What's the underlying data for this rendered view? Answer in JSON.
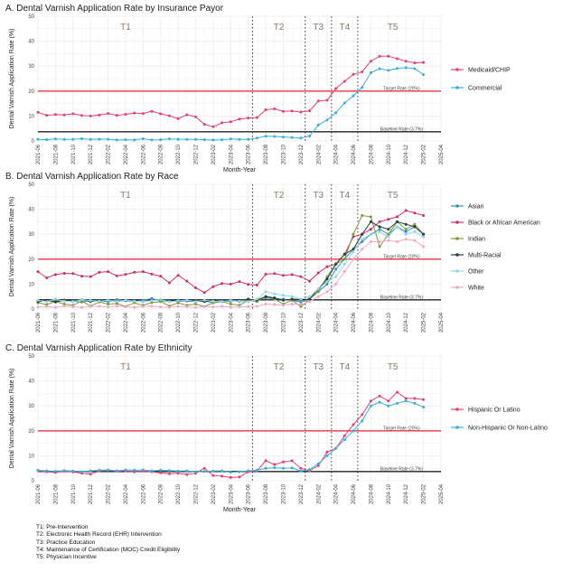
{
  "footnotes": [
    "T1: Pre-Intervention",
    "T2: Electronic Health Record (EHR) Intervention",
    "T3: Practice Education",
    "T4: Maintenance of Certification (MOC) Credit Eligibility",
    "T5: Physician Incentive"
  ],
  "chart_data": [
    {
      "type": "line",
      "title": "A. Dental Varnish Application Rate by Insurance Payor",
      "xlabel": "Month-Year",
      "ylabel": "Dental Varnish Application Rate (%)",
      "ylim": [
        0,
        50
      ],
      "yticks": [
        0,
        10,
        20,
        30,
        40,
        50
      ],
      "xticks": [
        "2021-06",
        "2021-08",
        "2021-10",
        "2021-12",
        "2022-02",
        "2022-04",
        "2022-06",
        "2022-08",
        "2022-10",
        "2022-12",
        "2023-02",
        "2023-04",
        "2023-06",
        "2023-08",
        "2023-10",
        "2023-12",
        "2024-02",
        "2024-04",
        "2024-06",
        "2024-08",
        "2024-10",
        "2024-12",
        "2025-02",
        "2025-04"
      ],
      "x": [
        "2021-06",
        "2021-07",
        "2021-08",
        "2021-09",
        "2021-10",
        "2021-11",
        "2021-12",
        "2022-01",
        "2022-02",
        "2022-03",
        "2022-04",
        "2022-05",
        "2022-06",
        "2022-07",
        "2022-08",
        "2022-09",
        "2022-10",
        "2022-11",
        "2022-12",
        "2023-01",
        "2023-02",
        "2023-03",
        "2023-04",
        "2023-05",
        "2023-06",
        "2023-07",
        "2023-08",
        "2023-09",
        "2023-10",
        "2023-11",
        "2023-12",
        "2024-01",
        "2024-02",
        "2024-03",
        "2024-04",
        "2024-05",
        "2024-06",
        "2024-07",
        "2024-08",
        "2024-09",
        "2024-10",
        "2024-11",
        "2024-12",
        "2025-01",
        "2025-02"
      ],
      "series": [
        {
          "name": "Medicaid/CHIP",
          "color": "#e0407a",
          "values": [
            11.5,
            10.3,
            10.6,
            10.4,
            10.9,
            10.2,
            10.0,
            10.4,
            11.0,
            10.3,
            10.7,
            11.2,
            11.0,
            11.9,
            10.9,
            10.1,
            9.0,
            10.5,
            9.7,
            6.7,
            5.7,
            7.3,
            7.7,
            8.8,
            9.2,
            9.4,
            12.5,
            12.9,
            11.9,
            12.0,
            11.6,
            12.1,
            16.0,
            16.3,
            21.0,
            23.9,
            26.7,
            27.7,
            32.0,
            34.0,
            34.0,
            33.0,
            32.0,
            31.3,
            31.5
          ]
        },
        {
          "name": "Commercial",
          "color": "#3aafd4",
          "values": [
            0.6,
            0.5,
            0.8,
            0.6,
            0.7,
            0.9,
            0.6,
            0.7,
            0.7,
            0.4,
            0.5,
            0.4,
            0.9,
            0.4,
            0.5,
            0.8,
            0.7,
            0.6,
            0.6,
            0.5,
            0.4,
            0.5,
            0.8,
            0.6,
            0.6,
            1.2,
            1.9,
            1.8,
            1.6,
            1.4,
            1.2,
            2.0,
            6.4,
            8.4,
            11.3,
            15.2,
            18.1,
            21.5,
            27.4,
            29.0,
            28.3,
            29.1,
            29.4,
            29.0,
            26.6
          ]
        }
      ],
      "reference_lines": [
        {
          "label": "Target Rate (20%)",
          "value": 20,
          "color": "#e8364a"
        },
        {
          "label": "Baseline Rate (3.7%)",
          "value": 3.7,
          "color": "#222222"
        }
      ],
      "phases": [
        {
          "label": "T1",
          "start": "2021-06",
          "end": "2023-06"
        },
        {
          "label": "T2",
          "start": "2023-07",
          "end": "2023-12"
        },
        {
          "label": "T3",
          "start": "2024-01",
          "end": "2024-03"
        },
        {
          "label": "T4",
          "start": "2024-04",
          "end": "2024-06"
        },
        {
          "label": "T5",
          "start": "2024-07",
          "end": "2025-02"
        }
      ],
      "phase_boundaries": [
        "2023-07",
        "2024-01",
        "2024-04",
        "2024-07"
      ],
      "legend": "right"
    },
    {
      "type": "line",
      "title": "B. Dental Varnish Application Rate by Race",
      "xlabel": "",
      "ylabel": "Dental Varnish Application Rate (%)",
      "ylim": [
        0,
        50
      ],
      "yticks": [
        0,
        10,
        20,
        30,
        40,
        50
      ],
      "xticks": [
        "2021-06",
        "2021-08",
        "2021-10",
        "2021-12",
        "2022-02",
        "2022-04",
        "2022-06",
        "2022-08",
        "2022-10",
        "2022-12",
        "2023-02",
        "2023-04",
        "2023-06",
        "2023-08",
        "2023-10",
        "2023-12",
        "2024-02",
        "2024-04",
        "2024-06",
        "2024-08",
        "2024-10",
        "2024-12",
        "2025-02",
        "2025-04"
      ],
      "x": [
        "2021-06",
        "2021-07",
        "2021-08",
        "2021-09",
        "2021-10",
        "2021-11",
        "2021-12",
        "2022-01",
        "2022-02",
        "2022-03",
        "2022-04",
        "2022-05",
        "2022-06",
        "2022-07",
        "2022-08",
        "2022-09",
        "2022-10",
        "2022-11",
        "2022-12",
        "2023-01",
        "2023-02",
        "2023-03",
        "2023-04",
        "2023-05",
        "2023-06",
        "2023-07",
        "2023-08",
        "2023-09",
        "2023-10",
        "2023-11",
        "2023-12",
        "2024-01",
        "2024-02",
        "2024-03",
        "2024-04",
        "2024-05",
        "2024-06",
        "2024-07",
        "2024-08",
        "2024-09",
        "2024-10",
        "2024-11",
        "2024-12",
        "2025-01",
        "2025-02"
      ],
      "series": [
        {
          "name": "Asian",
          "color": "#3c8fb8",
          "values": [
            3.2,
            3.4,
            3.0,
            3.6,
            3.1,
            2.8,
            3.5,
            3.2,
            3.0,
            3.8,
            3.3,
            3.1,
            3.5,
            4.2,
            3.3,
            3.0,
            3.5,
            3.2,
            3.0,
            3.3,
            2.5,
            3.2,
            3.5,
            3.0,
            3.2,
            3.8,
            4.5,
            4.1,
            4.0,
            3.5,
            2.8,
            4.0,
            7.0,
            10.0,
            16.0,
            20.0,
            24.0,
            27.0,
            30.0,
            32.0,
            30.0,
            33.0,
            31.0,
            33.0,
            30.0
          ]
        },
        {
          "name": "Black or African American",
          "color": "#c8316a",
          "values": [
            15.0,
            12.5,
            13.8,
            14.3,
            14.2,
            13.2,
            13.0,
            14.7,
            15.0,
            13.3,
            13.9,
            14.7,
            15.0,
            14.0,
            13.2,
            10.5,
            13.5,
            11.2,
            8.5,
            6.6,
            9.0,
            10.2,
            10.0,
            11.0,
            9.9,
            9.6,
            14.0,
            14.2,
            13.5,
            13.8,
            13.0,
            11.2,
            14.5,
            17.0,
            18.0,
            22.0,
            29.0,
            30.0,
            32.0,
            35.0,
            36.0,
            37.0,
            39.5,
            38.5,
            37.5
          ]
        },
        {
          "name": "Indian",
          "color": "#7b9a3a",
          "values": [
            2.5,
            1.8,
            3.0,
            2.0,
            1.5,
            3.2,
            1.2,
            2.8,
            2.0,
            2.2,
            1.0,
            2.5,
            1.5,
            2.6,
            3.0,
            1.2,
            2.5,
            1.5,
            2.0,
            1.0,
            2.5,
            3.0,
            2.0,
            1.5,
            3.5,
            3.0,
            5.0,
            4.0,
            2.0,
            3.5,
            1.0,
            4.0,
            7.0,
            13.0,
            18.0,
            20.0,
            30.0,
            37.5,
            37.0,
            25.0,
            30.0,
            35.0,
            32.0,
            34.0,
            30.0
          ]
        },
        {
          "name": "Multi-Racial",
          "color": "#2a3a38",
          "values": [
            3.0,
            3.5,
            2.8,
            3.6,
            3.0,
            3.8,
            3.0,
            3.4,
            3.6,
            3.0,
            3.5,
            3.2,
            3.0,
            3.5,
            3.8,
            3.4,
            3.0,
            3.5,
            3.2,
            3.0,
            3.4,
            3.0,
            3.2,
            3.5,
            4.0,
            3.6,
            5.0,
            4.5,
            3.5,
            4.0,
            3.8,
            4.0,
            8.0,
            12.0,
            18.0,
            22.0,
            24.0,
            30.0,
            35.0,
            33.0,
            32.0,
            35.0,
            34.0,
            33.0,
            30.0
          ]
        },
        {
          "name": "Other",
          "color": "#8ed6e6",
          "values": [
            3.5,
            3.0,
            4.0,
            3.2,
            3.0,
            3.8,
            3.4,
            3.2,
            3.5,
            3.0,
            3.6,
            3.2,
            3.0,
            3.4,
            3.8,
            3.0,
            3.2,
            3.6,
            3.0,
            3.5,
            3.2,
            3.0,
            3.4,
            3.2,
            3.0,
            4.0,
            7.0,
            6.0,
            5.5,
            5.0,
            4.0,
            5.0,
            8.0,
            11.0,
            13.0,
            18.0,
            23.0,
            28.0,
            30.0,
            31.0,
            29.0,
            33.0,
            30.0,
            31.0,
            29.0
          ]
        },
        {
          "name": "White",
          "color": "#f0a8c8",
          "values": [
            0.8,
            1.0,
            0.6,
            1.2,
            0.9,
            0.7,
            1.0,
            1.1,
            0.8,
            1.2,
            0.9,
            0.6,
            1.0,
            1.2,
            0.8,
            0.7,
            1.1,
            0.9,
            0.6,
            1.0,
            0.8,
            1.1,
            0.7,
            0.9,
            1.0,
            1.1,
            2.0,
            1.8,
            1.5,
            2.0,
            1.8,
            3.0,
            5.0,
            7.0,
            10.0,
            15.0,
            20.0,
            24.0,
            27.0,
            27.0,
            27.5,
            27.0,
            28.0,
            27.5,
            25.0
          ]
        }
      ],
      "reference_lines": [
        {
          "label": "Target Rate (20%)",
          "value": 20,
          "color": "#e8364a"
        },
        {
          "label": "Baseline Rate (3.7%)",
          "value": 3.7,
          "color": "#222222"
        }
      ],
      "phases": [
        {
          "label": "T1",
          "start": "2021-06",
          "end": "2023-06"
        },
        {
          "label": "T2",
          "start": "2023-07",
          "end": "2023-12"
        },
        {
          "label": "T3",
          "start": "2024-01",
          "end": "2024-03"
        },
        {
          "label": "T4",
          "start": "2024-04",
          "end": "2024-06"
        },
        {
          "label": "T5",
          "start": "2024-07",
          "end": "2025-02"
        }
      ],
      "phase_boundaries": [
        "2023-07",
        "2024-01",
        "2024-04",
        "2024-07"
      ],
      "legend": "right"
    },
    {
      "type": "line",
      "title": "C. Dental Varnish Application Rate by Ethnicity",
      "xlabel": "Month-Year",
      "ylabel": "Dental Varnish Application Rate (%)",
      "ylim": [
        0,
        50
      ],
      "yticks": [
        0,
        10,
        20,
        30,
        40,
        50
      ],
      "xticks": [
        "2021-06",
        "2021-08",
        "2021-10",
        "2021-12",
        "2022-02",
        "2022-04",
        "2022-06",
        "2022-08",
        "2022-10",
        "2022-12",
        "2023-02",
        "2023-04",
        "2023-06",
        "2023-08",
        "2023-10",
        "2023-12",
        "2024-02",
        "2024-04",
        "2024-06",
        "2024-08",
        "2024-10",
        "2024-12",
        "2025-02",
        "2025-04"
      ],
      "x": [
        "2021-06",
        "2021-07",
        "2021-08",
        "2021-09",
        "2021-10",
        "2021-11",
        "2021-12",
        "2022-01",
        "2022-02",
        "2022-03",
        "2022-04",
        "2022-05",
        "2022-06",
        "2022-07",
        "2022-08",
        "2022-09",
        "2022-10",
        "2022-11",
        "2022-12",
        "2023-01",
        "2023-02",
        "2023-03",
        "2023-04",
        "2023-05",
        "2023-06",
        "2023-07",
        "2023-08",
        "2023-09",
        "2023-10",
        "2023-11",
        "2023-12",
        "2024-01",
        "2024-02",
        "2024-03",
        "2024-04",
        "2024-05",
        "2024-06",
        "2024-07",
        "2024-08",
        "2024-09",
        "2024-10",
        "2024-11",
        "2024-12",
        "2025-01",
        "2025-02"
      ],
      "series": [
        {
          "name": "Hispanic Or Latino",
          "color": "#e0407a",
          "values": [
            4.0,
            3.6,
            3.3,
            3.8,
            3.5,
            3.0,
            2.6,
            3.9,
            4.2,
            3.8,
            4.0,
            3.5,
            3.9,
            3.6,
            3.2,
            2.8,
            3.0,
            2.5,
            3.0,
            5.0,
            2.1,
            1.8,
            1.3,
            1.5,
            3.5,
            4.0,
            8.0,
            6.5,
            7.5,
            8.0,
            5.0,
            4.0,
            6.0,
            11.5,
            13.0,
            18.0,
            22.5,
            26.5,
            32.0,
            34.0,
            32.0,
            35.5,
            33.0,
            33.0,
            32.5
          ]
        },
        {
          "name": "Non-Hispanic Or Non-Latino",
          "color": "#3aafd4",
          "values": [
            4.2,
            4.0,
            3.8,
            4.1,
            3.9,
            3.6,
            4.0,
            4.2,
            4.3,
            4.0,
            4.3,
            4.2,
            4.3,
            4.0,
            4.2,
            4.1,
            3.9,
            4.0,
            3.5,
            3.7,
            3.9,
            4.0,
            3.4,
            3.6,
            4.0,
            4.2,
            5.0,
            5.2,
            5.0,
            5.1,
            3.9,
            4.5,
            6.8,
            10.0,
            13.0,
            16.5,
            20.0,
            24.0,
            30.0,
            31.5,
            30.0,
            31.0,
            32.0,
            31.0,
            29.5
          ]
        }
      ],
      "reference_lines": [
        {
          "label": "Target Rate (20%)",
          "value": 20,
          "color": "#e8364a"
        },
        {
          "label": "Baseline Rate (3.7%)",
          "value": 3.7,
          "color": "#222222"
        }
      ],
      "phases": [
        {
          "label": "T1",
          "start": "2021-06",
          "end": "2023-06"
        },
        {
          "label": "T2",
          "start": "2023-07",
          "end": "2023-12"
        },
        {
          "label": "T3",
          "start": "2024-01",
          "end": "2024-03"
        },
        {
          "label": "T4",
          "start": "2024-04",
          "end": "2024-06"
        },
        {
          "label": "T5",
          "start": "2024-07",
          "end": "2025-02"
        }
      ],
      "phase_boundaries": [
        "2023-07",
        "2024-01",
        "2024-04",
        "2024-07"
      ],
      "legend": "right"
    }
  ]
}
